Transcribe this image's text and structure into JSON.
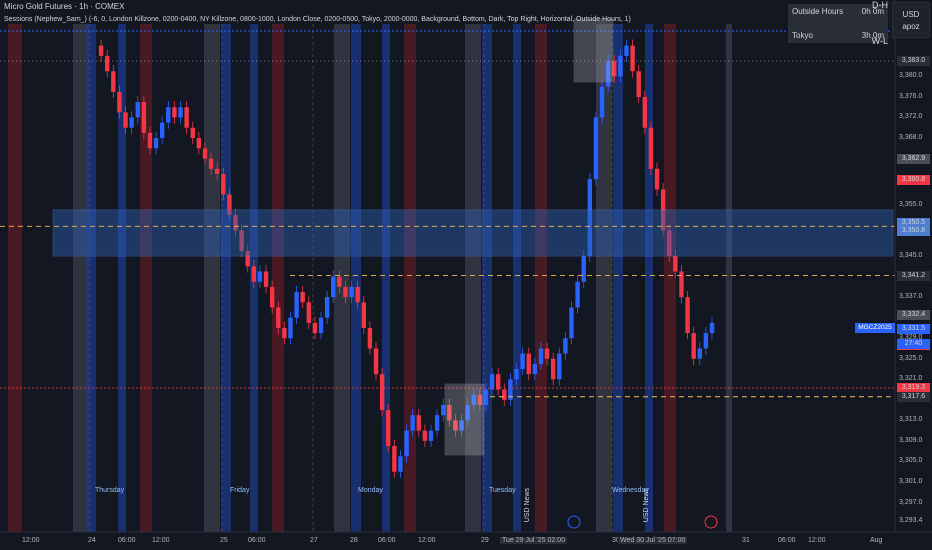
{
  "header": {
    "symbol_line": "Micro Gold Futures · 1h · COMEX",
    "indicator_line": "Sessions (Nephew_Sam_) (-6, 0, London Killzone, 0200-0400, NY Killzone, 0800-1000, London Close, 0200-0500, Tokyo, 2000-0000, Background, Bottom, Dark, Top Right, Horizontal, Outside Hours, 1)"
  },
  "session_table": {
    "row1_name": "Outside Hours",
    "row1_value": "0h 0m",
    "row2_name": "Tokyo",
    "row2_value": "3h 0m"
  },
  "currency_button": {
    "currency": "USD",
    "user": "apoz"
  },
  "timeframe_labels": {
    "dh": "D-H",
    "wl": "W-L"
  },
  "price_axis": [
    "3,380.0",
    "3,376.0",
    "3,372.0",
    "3,368.0",
    "3,364.0",
    "3,355.0",
    "3,345.0",
    "3,337.0",
    "3,329.0",
    "3,325.0",
    "3,321.0",
    "3,313.0",
    "3,309.0",
    "3,305.0",
    "3,301.0",
    "3,297.0",
    "3,293.4"
  ],
  "price_tags": {
    "p3383": "3,383.0",
    "p3362": "3,362.9",
    "p3360": "3,360.8",
    "p3350_5": "3,350.5",
    "p3350_8": "3,350.8",
    "p3341": "3,341.2",
    "p3332": "3,332.4",
    "p3331": "3,331.5",
    "countdown": "27:40",
    "symbol": "MGCZ2025",
    "p3327": "3,327.6",
    "p3319": "3,319.3",
    "p3317": "3,317.6"
  },
  "time_axis": [
    "12:00",
    "24",
    "06:00",
    "12:00",
    "25",
    "06:00",
    "27",
    "28",
    "06:00",
    "12:00",
    "29",
    "Tue 29 Jul '25 02:00",
    "30",
    "Wed 30 Jul '25 07:00",
    "31",
    "06:00",
    "12:00",
    "Aug"
  ],
  "day_labels": [
    "Thursday",
    "Friday",
    "Monday",
    "Tuesday",
    "Wednesday"
  ],
  "news_labels": [
    "USD News",
    "USD News"
  ],
  "colors": {
    "bull": "#2962ff",
    "bear": "#f23645",
    "killzone_red": "#5b1e25",
    "killzone_blue": "#1c3a8a",
    "tokyo_gray": "#3a3f4b",
    "zone_fill": "#2f5fb3",
    "orange": "#ffb74d"
  }
}
